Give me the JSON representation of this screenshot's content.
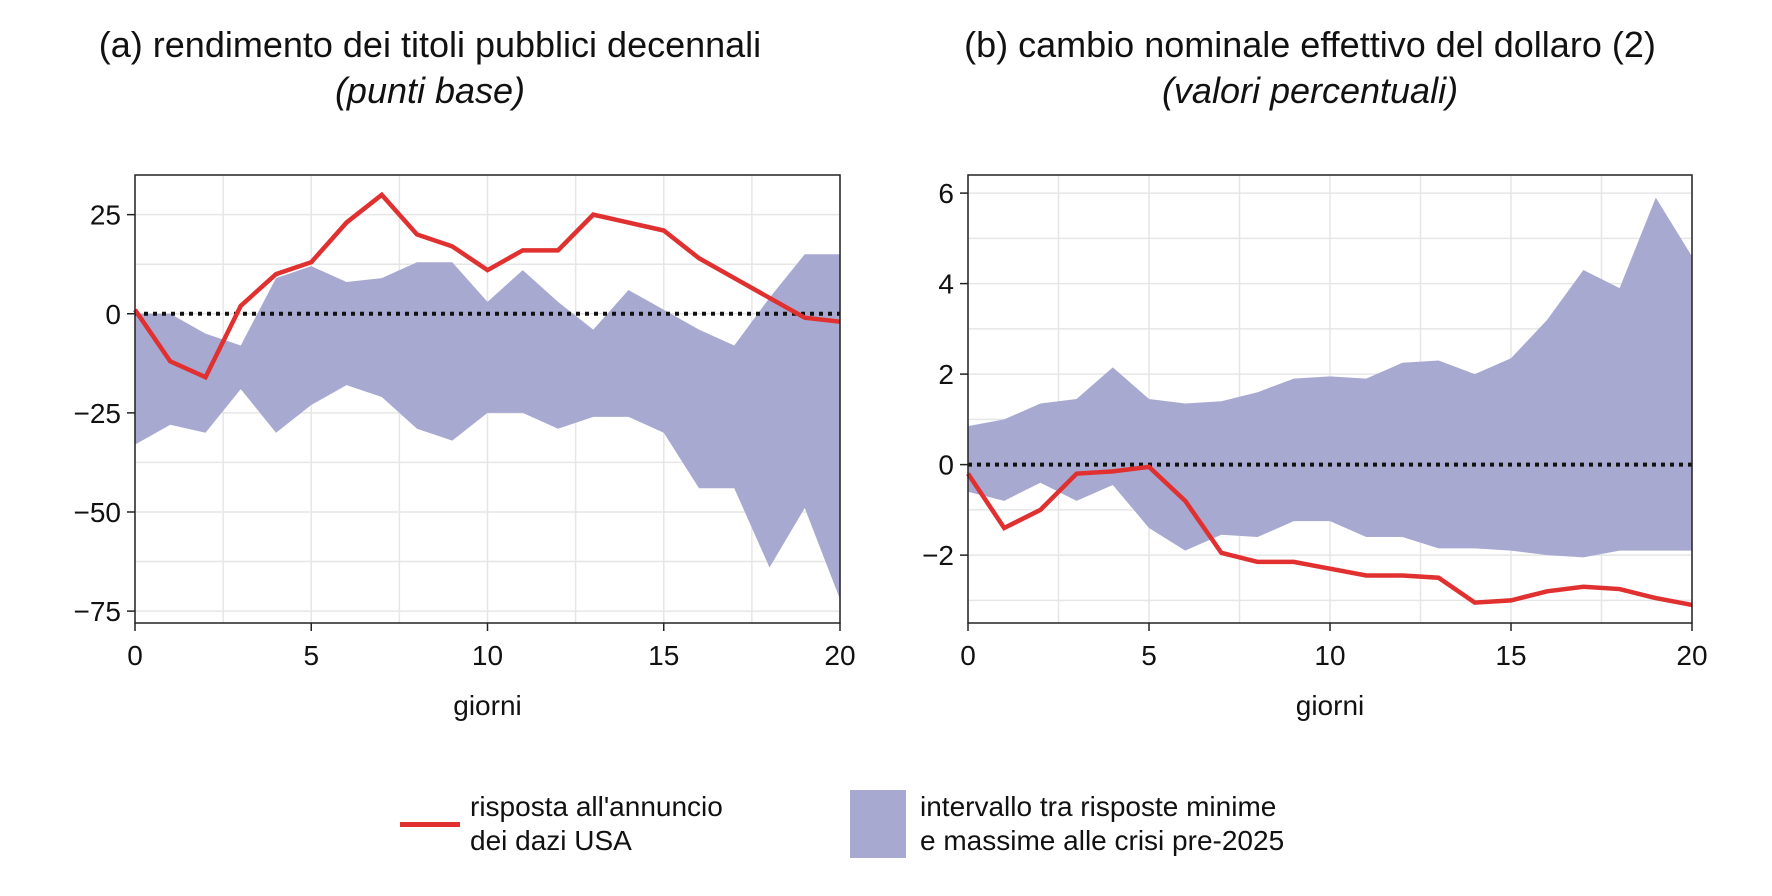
{
  "colors": {
    "band": "#a8a9d1",
    "line": "#e03030",
    "grid": "#e6e6e6",
    "zero": "#111111"
  },
  "legend": {
    "line_label": [
      "risposta all'annuncio",
      "dei dazi USA"
    ],
    "band_label": [
      "intervallo tra risposte minime",
      "e massime alle crisi pre-2025"
    ]
  },
  "chart_data": [
    {
      "type": "line",
      "title": "(a) rendimento dei titoli pubblici decennali",
      "subtitle": "(punti base)",
      "xlabel": "giorni",
      "ylabel": "",
      "xlim": [
        0,
        20
      ],
      "ylim": [
        -78,
        35
      ],
      "xticks": [
        0,
        5,
        10,
        15,
        20
      ],
      "yticks": [
        25,
        0,
        -25,
        -50,
        -75
      ],
      "ytick_labels": [
        "25",
        "0",
        "−25",
        "−50",
        "−75"
      ],
      "grid": true,
      "x": [
        0,
        1,
        2,
        3,
        4,
        5,
        6,
        7,
        8,
        9,
        10,
        11,
        12,
        13,
        14,
        15,
        16,
        17,
        18,
        19,
        20
      ],
      "series": [
        {
          "name": "risposta all'annuncio dei dazi USA",
          "kind": "line",
          "values": [
            1,
            -12,
            -16,
            2,
            10,
            13,
            23,
            30,
            20,
            17,
            11,
            16,
            16,
            25,
            23,
            21,
            14,
            9,
            4,
            -1,
            -2
          ]
        },
        {
          "name": "intervallo tra risposte minime e massime alle crisi pre-2025",
          "kind": "band",
          "lower": [
            -33,
            -28,
            -30,
            -19,
            -30,
            -23,
            -18,
            -21,
            -29,
            -32,
            -25,
            -25,
            -29,
            -26,
            -26,
            -30,
            -44,
            -44,
            -64,
            -49,
            -72
          ],
          "upper": [
            0,
            0,
            -5,
            -8,
            9,
            12,
            8,
            9,
            13,
            13,
            3,
            11,
            3,
            -4,
            6,
            1,
            -4,
            -8,
            4,
            15,
            15
          ]
        }
      ]
    },
    {
      "type": "line",
      "title": "(b) cambio nominale effettivo del dollaro (2)",
      "subtitle": "(valori percentuali)",
      "xlabel": "giorni",
      "ylabel": "",
      "xlim": [
        0,
        20
      ],
      "ylim": [
        -3.5,
        6.4
      ],
      "xticks": [
        0,
        5,
        10,
        15,
        20
      ],
      "yticks": [
        6,
        4,
        2,
        0,
        -2
      ],
      "ytick_labels": [
        "6",
        "4",
        "2",
        "0",
        "−2"
      ],
      "grid": true,
      "x": [
        0,
        1,
        2,
        3,
        4,
        5,
        6,
        7,
        8,
        9,
        10,
        11,
        12,
        13,
        14,
        15,
        16,
        17,
        18,
        19,
        20
      ],
      "series": [
        {
          "name": "risposta all'annuncio dei dazi USA",
          "kind": "line",
          "values": [
            -0.2,
            -1.4,
            -1.0,
            -0.2,
            -0.15,
            -0.05,
            -0.8,
            -1.95,
            -2.15,
            -2.15,
            -2.3,
            -2.45,
            -2.45,
            -2.5,
            -3.05,
            -3.0,
            -2.8,
            -2.7,
            -2.75,
            -2.95,
            -3.1
          ]
        },
        {
          "name": "intervallo tra risposte minime e massime alle crisi pre-2025",
          "kind": "band",
          "lower": [
            -0.6,
            -0.8,
            -0.4,
            -0.8,
            -0.45,
            -1.4,
            -1.9,
            -1.55,
            -1.6,
            -1.25,
            -1.25,
            -1.6,
            -1.6,
            -1.85,
            -1.85,
            -1.9,
            -2.0,
            -2.05,
            -1.9,
            -1.9,
            -1.9
          ],
          "upper": [
            0.85,
            1.0,
            1.35,
            1.45,
            2.15,
            1.45,
            1.35,
            1.4,
            1.6,
            1.9,
            1.95,
            1.9,
            2.25,
            2.3,
            2.0,
            2.35,
            3.2,
            4.3,
            3.9,
            5.9,
            4.6
          ]
        }
      ]
    }
  ]
}
